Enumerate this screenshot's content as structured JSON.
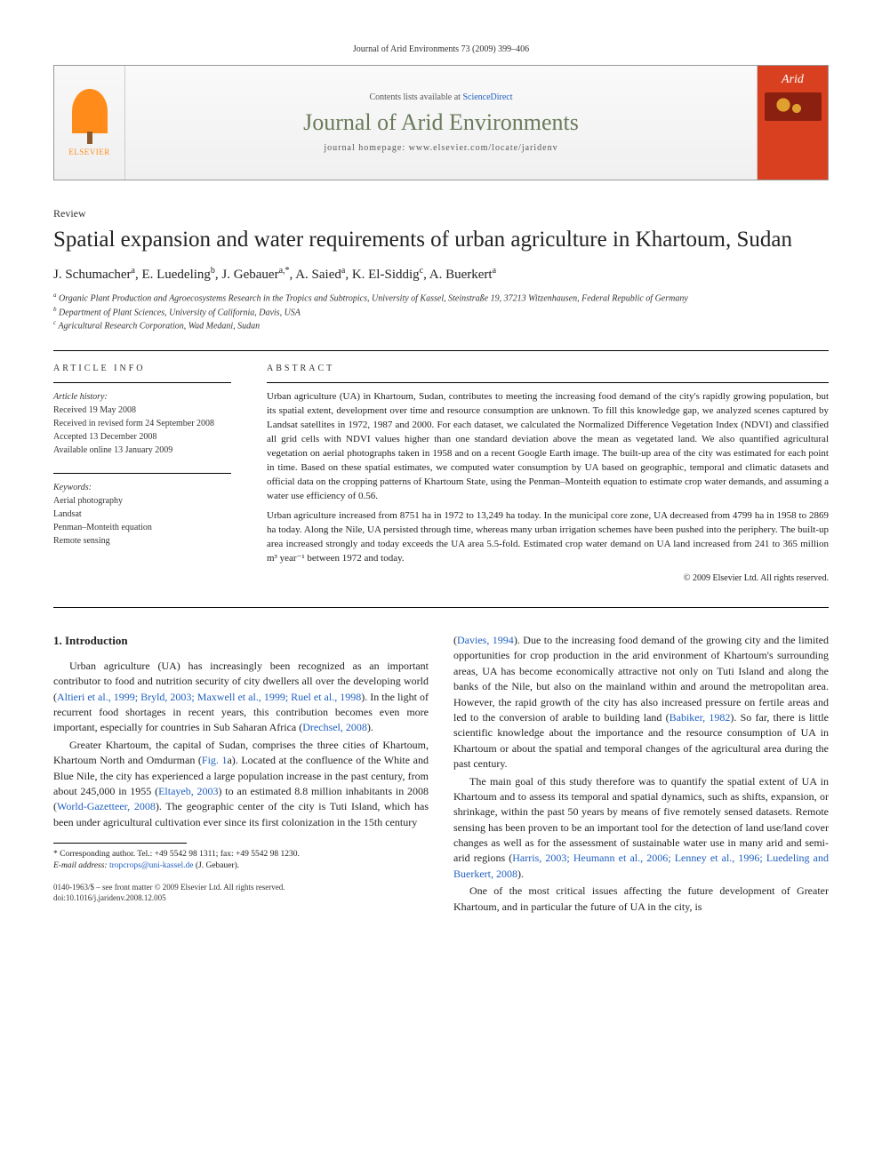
{
  "citation": "Journal of Arid Environments 73 (2009) 399–406",
  "masthead": {
    "publisher": "ELSEVIER",
    "contents_prefix": "Contents lists available at ",
    "contents_link": "ScienceDirect",
    "journal": "Journal of Arid Environments",
    "homepage_prefix": "journal homepage: ",
    "homepage": "www.elsevier.com/locate/jaridenv",
    "cover_label": "Arid"
  },
  "article": {
    "type": "Review",
    "title": "Spatial expansion and water requirements of urban agriculture in Khartoum, Sudan",
    "authors_html": "J. Schumacher<sup>a</sup>, E. Luedeling<sup>b</sup>, J. Gebauer<sup>a,*</sup>, A. Saied<sup>a</sup>, K. El-Siddig<sup>c</sup>, A. Buerkert<sup>a</sup>",
    "affiliations": {
      "a": "Organic Plant Production and Agroecosystems Research in the Tropics and Subtropics, University of Kassel, Steinstraße 19, 37213 Witzenhausen, Federal Republic of Germany",
      "b": "Department of Plant Sciences, University of California, Davis, USA",
      "c": "Agricultural Research Corporation, Wad Medani, Sudan"
    }
  },
  "info": {
    "label": "ARTICLE INFO",
    "history_label": "Article history:",
    "received": "Received 19 May 2008",
    "revised": "Received in revised form 24 September 2008",
    "accepted": "Accepted 13 December 2008",
    "online": "Available online 13 January 2009",
    "keywords_label": "Keywords:",
    "keywords": [
      "Aerial photography",
      "Landsat",
      "Penman–Monteith equation",
      "Remote sensing"
    ]
  },
  "abstract": {
    "label": "ABSTRACT",
    "p1": "Urban agriculture (UA) in Khartoum, Sudan, contributes to meeting the increasing food demand of the city's rapidly growing population, but its spatial extent, development over time and resource consumption are unknown. To fill this knowledge gap, we analyzed scenes captured by Landsat satellites in 1972, 1987 and 2000. For each dataset, we calculated the Normalized Difference Vegetation Index (NDVI) and classified all grid cells with NDVI values higher than one standard deviation above the mean as vegetated land. We also quantified agricultural vegetation on aerial photographs taken in 1958 and on a recent Google Earth image. The built-up area of the city was estimated for each point in time. Based on these spatial estimates, we computed water consumption by UA based on geographic, temporal and climatic datasets and official data on the cropping patterns of Khartoum State, using the Penman–Monteith equation to estimate crop water demands, and assuming a water use efficiency of 0.56.",
    "p2": "Urban agriculture increased from 8751 ha in 1972 to 13,249 ha today. In the municipal core zone, UA decreased from 4799 ha in 1958 to 2869 ha today. Along the Nile, UA persisted through time, whereas many urban irrigation schemes have been pushed into the periphery. The built-up area increased strongly and today exceeds the UA area 5.5-fold. Estimated crop water demand on UA land increased from 241 to 365 million m³ year⁻¹ between 1972 and today.",
    "copyright": "© 2009 Elsevier Ltd. All rights reserved."
  },
  "body": {
    "heading1": "1. Introduction",
    "para1_part1": "Urban agriculture (UA) has increasingly been recognized as an important contributor to food and nutrition security of city dwellers all over the developing world (",
    "para1_ref1": "Altieri et al., 1999; Bryld, 2003; Maxwell et al., 1999; Ruel et al., 1998",
    "para1_part2": "). In the light of recurrent food shortages in recent years, this contribution becomes even more important, especially for countries in Sub Saharan Africa (",
    "para1_ref2": "Drechsel, 2008",
    "para1_part3": ").",
    "para2_part1": "Greater Khartoum, the capital of Sudan, comprises the three cities of Khartoum, Khartoum North and Omdurman (",
    "para2_ref1": "Fig. 1",
    "para2_part2": "a). Located at the confluence of the White and Blue Nile, the city has experienced a large population increase in the past century, from about 245,000 in 1955 (",
    "para2_ref2": "Eltayeb, 2003",
    "para2_part3": ") to an estimated 8.8 million inhabitants in 2008 (",
    "para2_ref3": "World-Gazetteer, 2008",
    "para2_part4": "). The geographic center of the city is Tuti Island, which has been under agricultural cultivation ever since its first colonization in the 15th century",
    "para3_part0": "(",
    "para3_ref0": "Davies, 1994",
    "para3_part1": "). Due to the increasing food demand of the growing city and the limited opportunities for crop production in the arid environment of Khartoum's surrounding areas, UA has become economically attractive not only on Tuti Island and along the banks of the Nile, but also on the mainland within and around the metropolitan area. However, the rapid growth of the city has also increased pressure on fertile areas and led to the conversion of arable to building land (",
    "para3_ref1": "Babiker, 1982",
    "para3_part2": "). So far, there is little scientific knowledge about the importance and the resource consumption of UA in Khartoum or about the spatial and temporal changes of the agricultural area during the past century.",
    "para4_part1": "The main goal of this study therefore was to quantify the spatial extent of UA in Khartoum and to assess its temporal and spatial dynamics, such as shifts, expansion, or shrinkage, within the past 50 years by means of five remotely sensed datasets. Remote sensing has been proven to be an important tool for the detection of land use/land cover changes as well as for the assessment of sustainable water use in many arid and semi-arid regions (",
    "para4_ref1": "Harris, 2003; Heumann et al., 2006; Lenney et al., 1996; Luedeling and Buerkert, 2008",
    "para4_part2": ").",
    "para5": "One of the most critical issues affecting the future development of Greater Khartoum, and in particular the future of UA in the city, is"
  },
  "footnote": {
    "corresponding": "* Corresponding author. Tel.: +49 5542 98 1311; fax: +49 5542 98 1230.",
    "email_label": "E-mail address: ",
    "email": "tropcrops@uni-kassel.de",
    "email_name": " (J. Gebauer)."
  },
  "bottom": {
    "issn": "0140-1963/$ – see front matter © 2009 Elsevier Ltd. All rights reserved.",
    "doi": "doi:10.1016/j.jaridenv.2008.12.005"
  },
  "colors": {
    "link": "#2060c0",
    "journal_header": "#6a7a5a",
    "elsevier_orange": "#ff8c1a",
    "cover_red": "#d84020"
  }
}
